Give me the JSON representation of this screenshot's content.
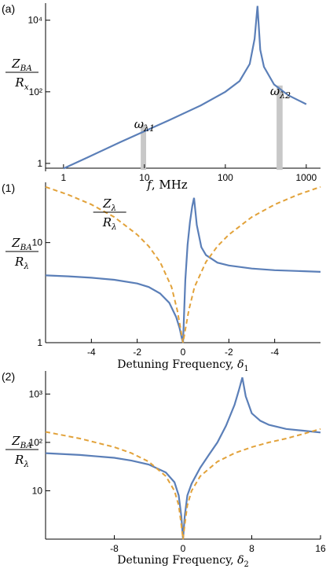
{
  "chart_data": [
    {
      "type": "line",
      "panel_label": "(a)",
      "xlabel": "f, MHz",
      "ylabel": [
        "Z_BA",
        "R_x"
      ],
      "xscale": "log",
      "yscale": "log",
      "xlim": [
        0.6,
        1500
      ],
      "ylim": [
        0.6,
        30000
      ],
      "x_ticks": [
        1,
        10,
        100,
        1000
      ],
      "x_tick_labels": [
        "1",
        "10",
        "100",
        "1000"
      ],
      "y_ticks": [
        1,
        100,
        10000
      ],
      "y_tick_labels": [
        "1",
        "10²",
        "10⁴"
      ],
      "series": [
        {
          "color": "#5b7fb8",
          "x": [
            1,
            2,
            5,
            10,
            20,
            50,
            100,
            150,
            200,
            230,
            250,
            270,
            300,
            400,
            600,
            1000
          ],
          "y": [
            0.72,
            1.48,
            3.9,
            7.9,
            16,
            42,
            100,
            200,
            600,
            3000,
            25000,
            1500,
            500,
            160,
            80,
            45
          ]
        }
      ],
      "annotations": [
        {
          "text": "ω_λ1",
          "x": 10
        },
        {
          "text": "ω_λ2",
          "x": 480
        }
      ],
      "bands": [
        {
          "x0": 9,
          "x1": 10.5,
          "y0": 0.66,
          "y1": 12
        },
        {
          "x0": 430,
          "x1": 510,
          "y0": 0.66,
          "y1": 150
        }
      ]
    },
    {
      "type": "line",
      "panel_label": "(1)",
      "xlabel": "Detuning Frequency, δ_1",
      "ylabel": [
        "Z_BA",
        "R_λ"
      ],
      "yscale": "log",
      "xlim": [
        -6,
        6
      ],
      "ylim": [
        1,
        40
      ],
      "x_ticks": [
        -4,
        -2,
        0,
        2,
        4
      ],
      "x_tick_labels": [
        "-4",
        "-2",
        "0",
        "-2",
        "-4"
      ],
      "y_ticks": [
        1,
        10
      ],
      "y_tick_labels": [
        "1",
        "10"
      ],
      "annotations": [
        {
          "text": [
            "Z_λ",
            "R_λ"
          ],
          "x": -3.2
        }
      ],
      "series": [
        {
          "color": "#5b7fb8",
          "x": [
            -6,
            -5,
            -4,
            -3,
            -2,
            -1.5,
            -1,
            -0.6,
            -0.3,
            -0.15,
            -0.05,
            0,
            0.1,
            0.2,
            0.3,
            0.4,
            0.48,
            0.6,
            0.8,
            1,
            1.5,
            2,
            3,
            4,
            5,
            6
          ],
          "y": [
            4.7,
            4.6,
            4.45,
            4.25,
            3.9,
            3.6,
            3.1,
            2.5,
            1.8,
            1.4,
            1.1,
            1.0,
            4.2,
            9.5,
            16,
            23,
            28,
            15,
            9,
            7.5,
            6.3,
            5.9,
            5.5,
            5.3,
            5.2,
            5.1
          ]
        },
        {
          "color": "#e2a23a",
          "dashed": true,
          "x": [
            -6,
            -5,
            -4,
            -3,
            -2,
            -1.5,
            -1,
            -0.5,
            -0.25,
            -0.1,
            0,
            0.1,
            0.25,
            0.5,
            1,
            1.5,
            2,
            3,
            4,
            5,
            6
          ],
          "y": [
            36,
            30,
            24,
            18,
            12,
            9.2,
            6.4,
            3.6,
            2.1,
            1.35,
            1.0,
            1.35,
            2.1,
            3.6,
            6.4,
            9.2,
            12,
            18,
            24,
            30,
            36
          ]
        }
      ]
    },
    {
      "type": "line",
      "panel_label": "(2)",
      "xlabel": "Detuning Frequency, δ_2",
      "ylabel": [
        "Z_BA",
        "R_λ"
      ],
      "yscale": "log",
      "xlim": [
        -16,
        16
      ],
      "ylim": [
        1,
        3000
      ],
      "x_ticks": [
        -8,
        0,
        8,
        16
      ],
      "x_tick_labels": [
        "-8",
        "0",
        "8",
        "16"
      ],
      "y_ticks": [
        10,
        100,
        1000
      ],
      "y_tick_labels": [
        "10",
        "10²",
        "10³"
      ],
      "series": [
        {
          "color": "#5b7fb8",
          "x": [
            -16,
            -12,
            -8,
            -6,
            -4,
            -2,
            -1,
            -0.5,
            -0.2,
            0,
            0.2,
            0.5,
            1,
            2,
            3,
            4,
            5,
            6,
            6.5,
            6.9,
            7.3,
            8,
            9,
            10,
            12,
            14,
            16
          ],
          "y": [
            60,
            55,
            48,
            42,
            35,
            24,
            15,
            8,
            3,
            1.0,
            3,
            8,
            14,
            30,
            55,
            100,
            220,
            600,
            1200,
            2200,
            900,
            400,
            280,
            230,
            190,
            175,
            160
          ]
        },
        {
          "color": "#e2a23a",
          "dashed": true,
          "x": [
            -16,
            -12,
            -8,
            -6,
            -4,
            -2,
            -1,
            -0.5,
            -0.2,
            0,
            0.2,
            0.5,
            1,
            2,
            4,
            6,
            8,
            10,
            12,
            14,
            16
          ],
          "y": [
            165,
            120,
            80,
            60,
            40,
            20,
            10,
            5,
            2,
            1.0,
            2,
            5,
            10,
            20,
            40,
            60,
            80,
            100,
            120,
            150,
            190
          ]
        }
      ]
    }
  ]
}
